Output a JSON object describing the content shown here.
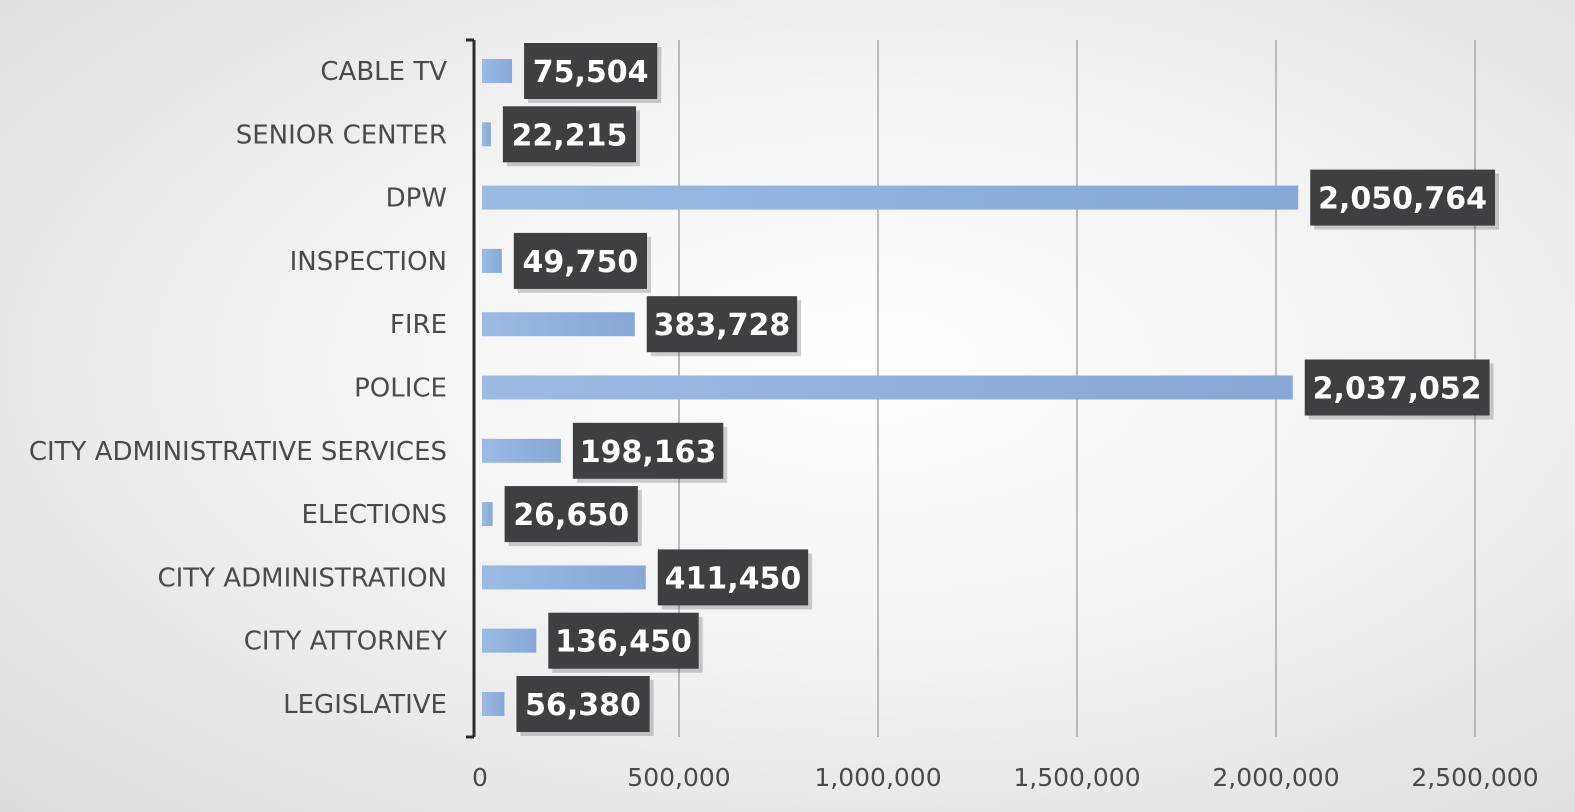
{
  "chart_data": {
    "type": "bar",
    "orientation": "horizontal",
    "categories": [
      "CABLE TV",
      "SENIOR CENTER",
      "DPW",
      "INSPECTION",
      "FIRE",
      "POLICE",
      "CITY ADMINISTRATIVE SERVICES",
      "ELECTIONS",
      "CITY ADMINISTRATION",
      "CITY ATTORNEY",
      "LEGISLATIVE"
    ],
    "values": [
      75504,
      22215,
      2050764,
      49750,
      383728,
      2037052,
      198163,
      26650,
      411450,
      136450,
      56380
    ],
    "value_labels": [
      "75,504",
      "22,215",
      "2,050,764",
      "49,750",
      "383,728",
      "2,037,052",
      "198,163",
      "26,650",
      "411,450",
      "136,450",
      "56,380"
    ],
    "xlim": [
      0,
      2500000
    ],
    "x_ticks": [
      0,
      500000,
      1000000,
      1500000,
      2000000,
      2500000
    ],
    "x_tick_labels": [
      "0",
      "500,000",
      "1,000,000",
      "1,500,000",
      "2,000,000",
      "2,500,000"
    ],
    "title": "",
    "xlabel": "",
    "ylabel": "",
    "grid": "vertical",
    "legend": "none",
    "colors": {
      "bar": "#8eb0dc",
      "label_box": "#3f3f42",
      "label_text": "#ffffff",
      "text": "#4a4a4a",
      "grid": "#a8a8a8",
      "axis": "#2b2b2b"
    }
  }
}
